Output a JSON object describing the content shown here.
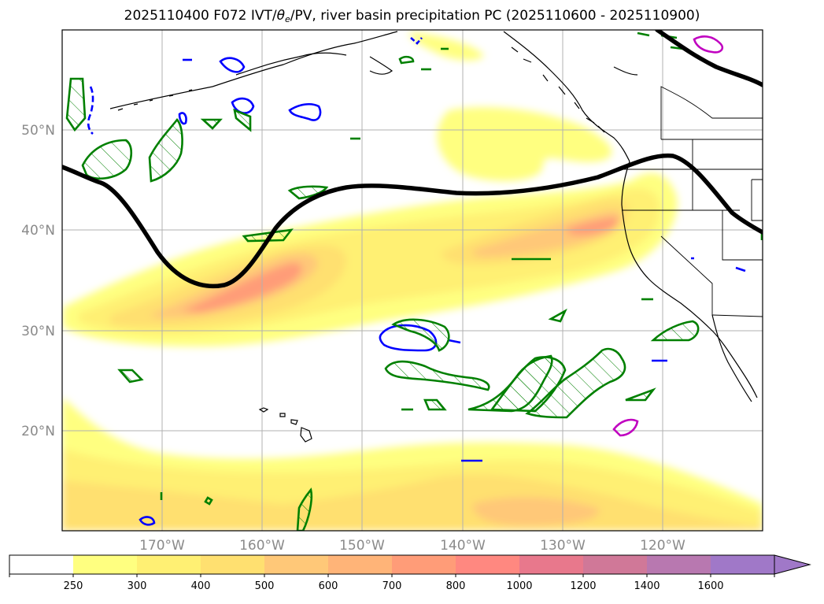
{
  "title": {
    "prefix": "2025110400 F072 IVT/",
    "theta_symbol": "θ",
    "theta_sub": "e",
    "suffix": "/PV, river basin precipitation PC (2025110600 - 2025110900)"
  },
  "map": {
    "projection": "equirectangular",
    "lon_range": [
      -180,
      -110
    ],
    "lat_range": [
      10,
      60
    ],
    "lat_labels": [
      "20°N",
      "30°N",
      "40°N",
      "50°N"
    ],
    "lon_labels": [
      "170°W",
      "160°W",
      "150°W",
      "140°W",
      "130°W",
      "120°W"
    ]
  },
  "colorbar": {
    "levels": [
      "250",
      "300",
      "400",
      "500",
      "600",
      "700",
      "800",
      "1000",
      "1200",
      "1400",
      "1600"
    ],
    "colors": [
      "#ffffff",
      "#ffff80",
      "#fff073",
      "#ffe070",
      "#ffc878",
      "#ffb478",
      "#ff9c78",
      "#ff8880",
      "#e8788c",
      "#d07898",
      "#b878b0",
      "#a078c8"
    ],
    "extend": "max"
  },
  "colors": {
    "pv_contour": "#000000",
    "theta_e_contour": "#008000",
    "blue_contour": "#0000ff",
    "magenta_contour": "#c000c0",
    "coastline": "#000000"
  }
}
